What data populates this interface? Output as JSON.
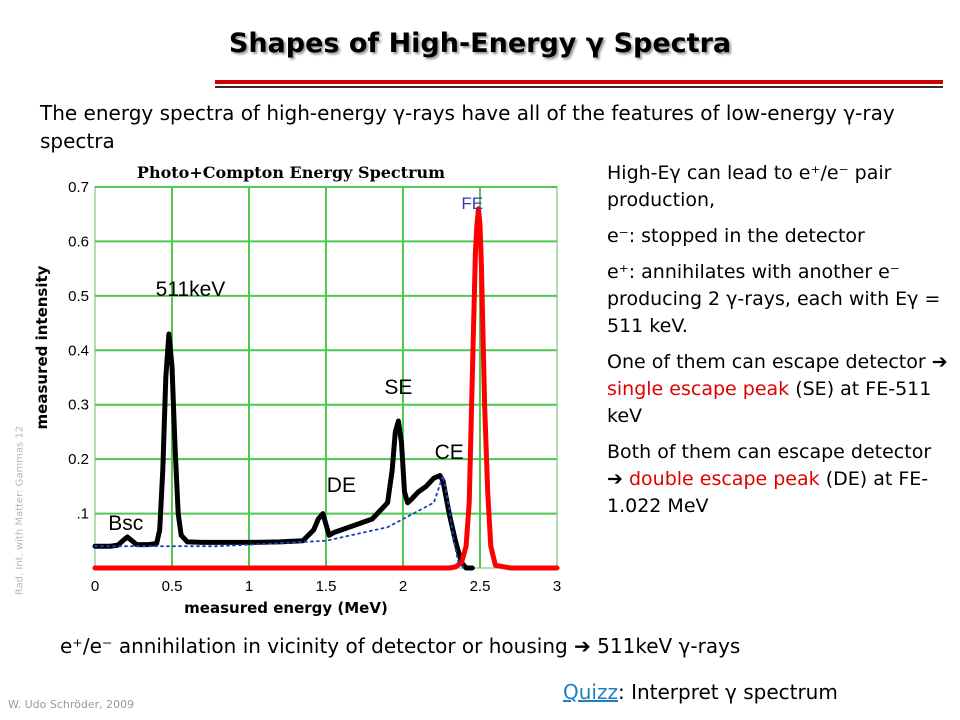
{
  "slide": {
    "title": "Shapes of High-Energy γ Spectra",
    "intro": "The energy spectra of high-energy γ-rays have all of the features of low-energy γ-ray spectra",
    "side_label": "Rad. Int. with Matter: Gammas    12",
    "credit": "W. Udo Schröder, 2009",
    "bullets": {
      "b1": "High-Eγ can lead to e⁺/e⁻ pair production,",
      "b2": "e⁻: stopped in the detector",
      "b3": "e⁺: annihilates with another e⁻ producing 2 γ-rays, each with Eγ = 511 keV.",
      "b4_pre": "One of them can escape detector  ",
      "b4_arrow": "➔",
      "b4_red1": "single escape",
      "b4_red2": "peak",
      "b4_post": " (SE) at FE-511 keV",
      "b5_pre": "Both of them can escape detector  ",
      "b5_arrow": "➔",
      "b5_red1": "double escape",
      "b5_red2": "peak",
      "b5_post": " (DE) at FE-1.022 MeV"
    },
    "annihilation": "e⁺/e⁻ annihilation in vicinity of detector or housing  ➔  511keV γ-rays",
    "quiz_link": "Quizz",
    "quiz_text": ": Interpret γ spectrum"
  },
  "colors": {
    "grid": "#4ec84e",
    "black_curve": "#000000",
    "red_curve": "#ff0000",
    "baseline": "#1f3fbf",
    "fe_label": "#3a3ab0"
  },
  "chart_data": {
    "type": "line",
    "title": "Photo+Compton Energy Spectrum",
    "xlabel": "measured energy (MeV)",
    "ylabel": "measured intensity",
    "xlim": [
      0,
      3
    ],
    "ylim": [
      0,
      0.7
    ],
    "xticks": [
      "0",
      "0.5",
      "1",
      "1.5",
      "2",
      "2.5",
      "3"
    ],
    "yticks": [
      ".1",
      "0.2",
      "0.3",
      "0.4",
      "0.5",
      "0.6",
      "0.7"
    ],
    "grid": true,
    "annotations": [
      {
        "text": "Bsc",
        "x": 0.2,
        "y": 0.07
      },
      {
        "text": "511keV",
        "x": 0.62,
        "y": 0.5
      },
      {
        "text": "DE",
        "x": 1.6,
        "y": 0.14
      },
      {
        "text": "SE",
        "x": 1.97,
        "y": 0.32
      },
      {
        "text": "CE",
        "x": 2.3,
        "y": 0.2
      },
      {
        "text": "FE",
        "x": 2.45,
        "y": 0.66
      }
    ],
    "series": [
      {
        "x": [
          0,
          0.05,
          0.1,
          0.15,
          0.18,
          0.21,
          0.24,
          0.27,
          0.3,
          0.35,
          0.4,
          0.42,
          0.44,
          0.46,
          0.48,
          0.5,
          0.52,
          0.54,
          0.56,
          0.6,
          0.7,
          0.8,
          1.0,
          1.2,
          1.35,
          1.42,
          1.45,
          1.48,
          1.5,
          1.52,
          1.55,
          1.6,
          1.7,
          1.8,
          1.9,
          1.93,
          1.95,
          1.97,
          1.99,
          2.01,
          2.03,
          2.05,
          2.1,
          2.15,
          2.2,
          2.24,
          2.26,
          2.3,
          2.34,
          2.38,
          2.41,
          2.45
        ],
        "y": [
          0.04,
          0.04,
          0.04,
          0.042,
          0.05,
          0.057,
          0.05,
          0.043,
          0.043,
          0.043,
          0.045,
          0.07,
          0.18,
          0.35,
          0.43,
          0.37,
          0.22,
          0.1,
          0.06,
          0.048,
          0.047,
          0.047,
          0.047,
          0.048,
          0.05,
          0.07,
          0.09,
          0.1,
          0.08,
          0.06,
          0.065,
          0.07,
          0.08,
          0.09,
          0.12,
          0.18,
          0.25,
          0.27,
          0.23,
          0.14,
          0.12,
          0.125,
          0.14,
          0.15,
          0.165,
          0.17,
          0.16,
          0.1,
          0.05,
          0.01,
          0.0,
          0.0
        ]
      },
      {
        "x": [
          0,
          2.3,
          2.34,
          2.38,
          2.41,
          2.43,
          2.45,
          2.47,
          2.48,
          2.49,
          2.5,
          2.51,
          2.52,
          2.53,
          2.55,
          2.57,
          2.6,
          2.7,
          2.8,
          2.9,
          3.0
        ],
        "y": [
          0.0,
          0.0,
          0.002,
          0.01,
          0.04,
          0.12,
          0.35,
          0.58,
          0.63,
          0.66,
          0.63,
          0.55,
          0.42,
          0.3,
          0.14,
          0.04,
          0.005,
          0.0,
          0.0,
          0.0,
          0.0
        ]
      },
      {
        "x": [
          0,
          0.8,
          1.5,
          1.9,
          2.2,
          2.26,
          2.3,
          2.33,
          2.36,
          2.4
        ],
        "y": [
          0.04,
          0.04,
          0.05,
          0.075,
          0.12,
          0.17,
          0.11,
          0.05,
          0.01,
          0.0
        ]
      }
    ]
  }
}
